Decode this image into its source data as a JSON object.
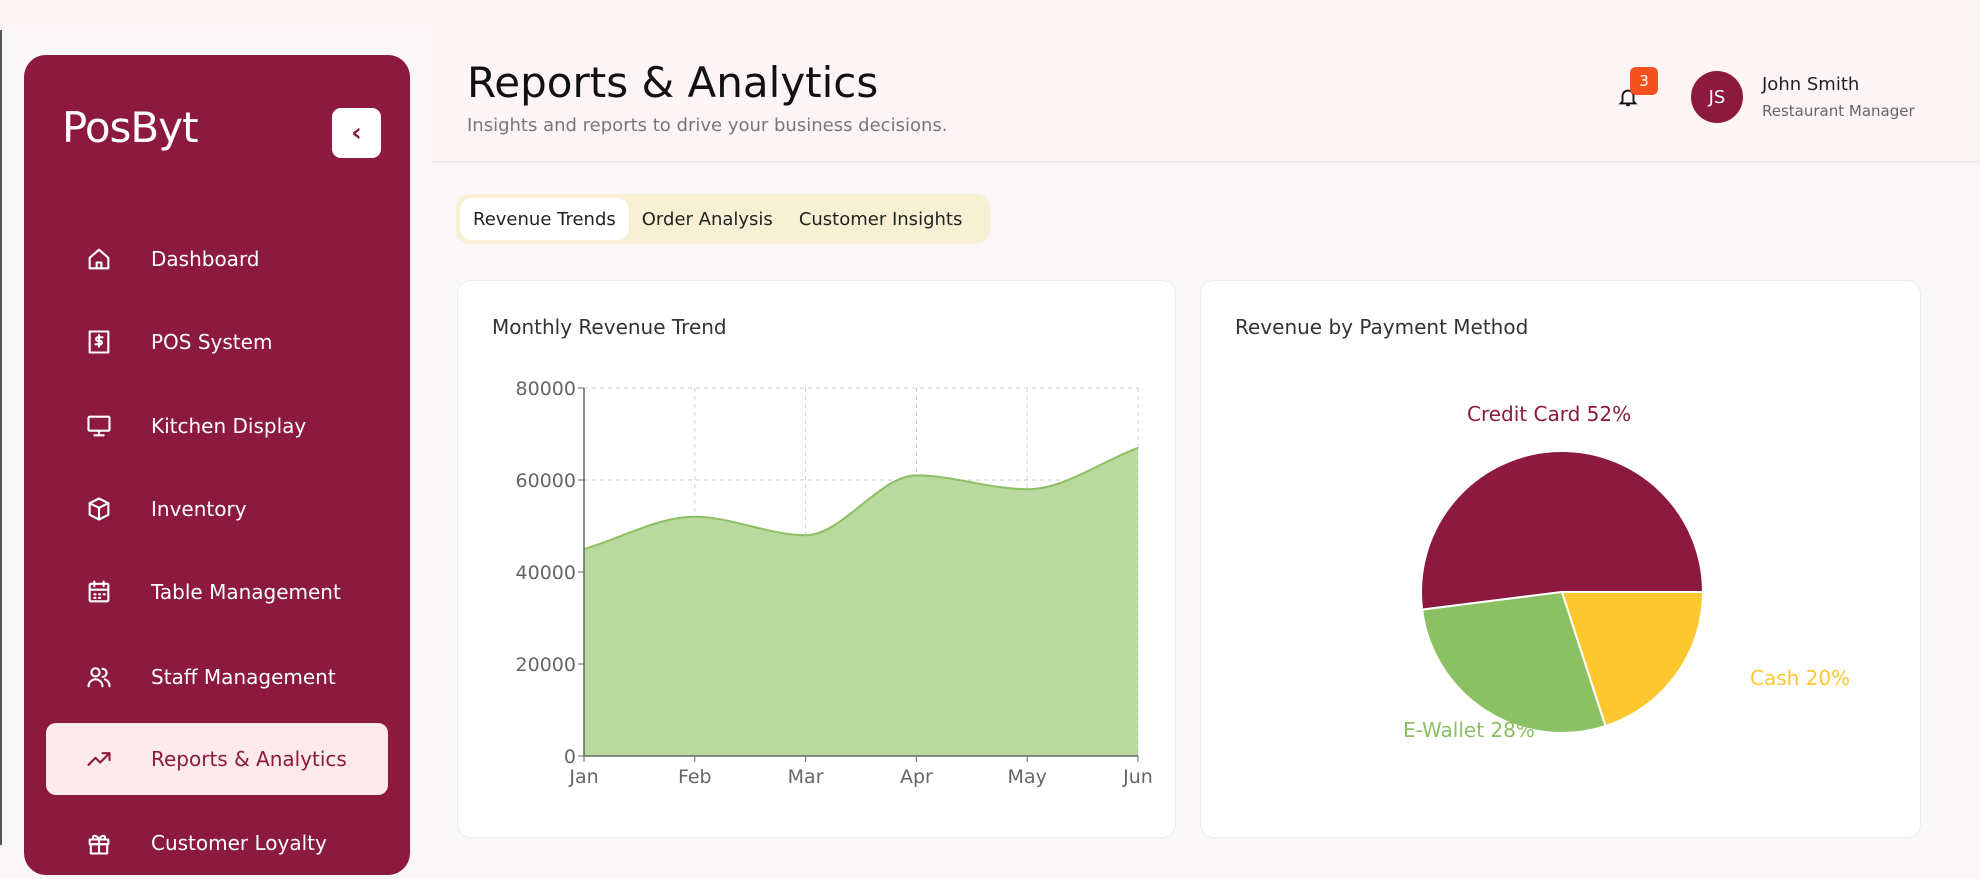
{
  "sidebar": {
    "logo": "PosByt",
    "items": [
      {
        "label": "Dashboard",
        "icon": "home-icon"
      },
      {
        "label": "POS System",
        "icon": "receipt-dollar-icon"
      },
      {
        "label": "Kitchen Display",
        "icon": "monitor-icon"
      },
      {
        "label": "Inventory",
        "icon": "box-icon"
      },
      {
        "label": "Table Management",
        "icon": "calendar-icon"
      },
      {
        "label": "Staff Management",
        "icon": "users-icon"
      },
      {
        "label": "Reports & Analytics",
        "icon": "trending-up-icon",
        "active": true
      },
      {
        "label": "Customer Loyalty",
        "icon": "gift-icon"
      }
    ]
  },
  "header": {
    "title": "Reports & Analytics",
    "subtitle": "Insights and reports to drive your business decisions.",
    "notifications": "3",
    "user": {
      "initials": "JS",
      "name": "John Smith",
      "role": "Restaurant Manager"
    }
  },
  "tabs": [
    {
      "label": "Revenue Trends",
      "active": true
    },
    {
      "label": "Order Analysis"
    },
    {
      "label": "Customer Insights"
    }
  ],
  "colors": {
    "brand": "#8b1a3e",
    "active_bg": "#fbe9ec",
    "badge": "#f4511e",
    "area": "#b9d99f",
    "area_line": "#8bc063",
    "cash": "#fdc82f"
  },
  "chart_data": [
    {
      "type": "area",
      "title": "Monthly Revenue Trend",
      "categories": [
        "Jan",
        "Feb",
        "Mar",
        "Apr",
        "May",
        "Jun"
      ],
      "values": [
        45000,
        52000,
        48000,
        61000,
        58000,
        67000
      ],
      "ylim": [
        0,
        80000
      ],
      "yticks": [
        "0",
        "20000",
        "40000",
        "60000",
        "80000"
      ],
      "grid": true
    },
    {
      "type": "pie",
      "title": "Revenue by Payment Method",
      "slices": [
        {
          "label": "Credit Card 52%",
          "name": "Credit Card",
          "value": 52,
          "color": "#8b1a3e"
        },
        {
          "label": "E-Wallet 28%",
          "name": "E-Wallet",
          "value": 28,
          "color": "#8bc063"
        },
        {
          "label": "Cash 20%",
          "name": "Cash",
          "value": 20,
          "color": "#fdc82f"
        }
      ]
    }
  ]
}
